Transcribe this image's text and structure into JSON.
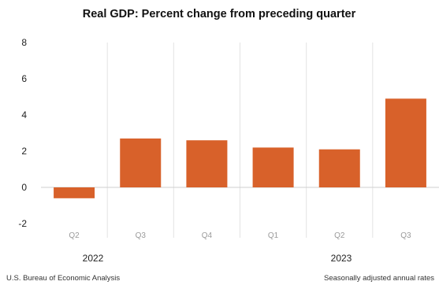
{
  "chart_data": {
    "type": "bar",
    "title": "Real GDP:  Percent change from preceding quarter",
    "categories": [
      "Q2",
      "Q3",
      "Q4",
      "Q1",
      "Q2",
      "Q3"
    ],
    "groups": [
      {
        "label": "2022",
        "categories": [
          "Q2",
          "Q3",
          "Q4"
        ]
      },
      {
        "label": "2023",
        "categories": [
          "Q1",
          "Q2",
          "Q3"
        ]
      }
    ],
    "series": [
      {
        "values": [
          -0.6,
          2.7,
          2.6,
          2.2,
          2.1,
          4.9
        ],
        "color": "#d8612a"
      }
    ],
    "yticks": [
      "8",
      "6",
      "4",
      "2",
      "0",
      "-2"
    ],
    "ylim": [
      -2,
      8
    ],
    "grid": false,
    "xlabel": "",
    "ylabel": "",
    "footnote_left": "U.S. Bureau of Economic Analysis",
    "footnote_right": "Seasonally adjusted annual rates"
  }
}
